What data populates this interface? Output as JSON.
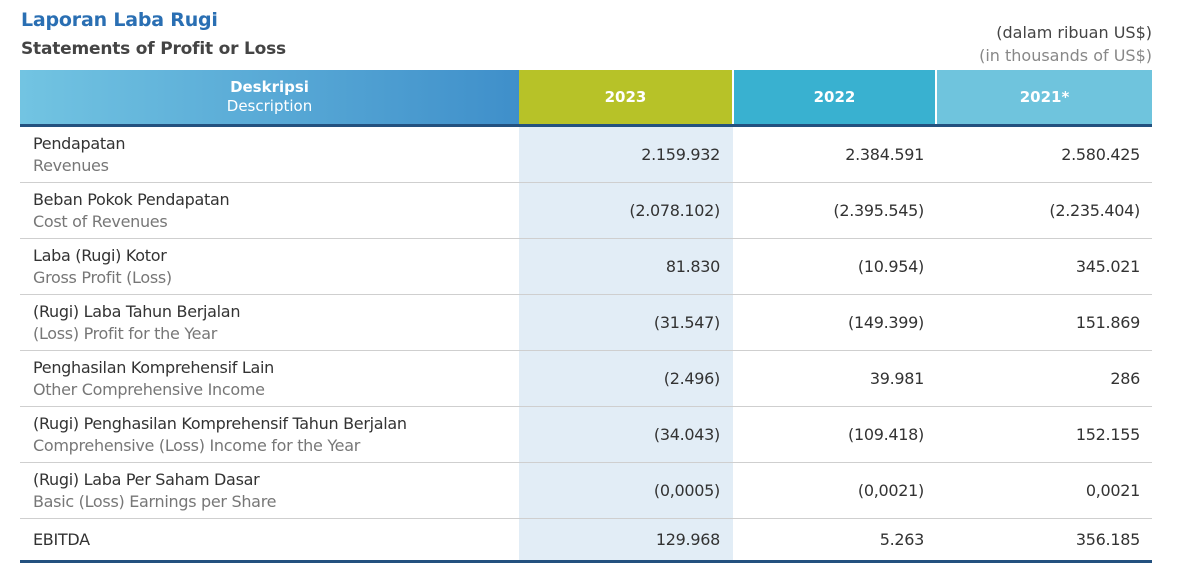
{
  "header": {
    "title_id": "Laporan Laba Rugi",
    "title_en": "Statements of Profit or Loss",
    "unit_id": "(dalam ribuan US$)",
    "unit_en": "(in thousands of US$)"
  },
  "table": {
    "columns": {
      "desc_id": "Deskripsi",
      "desc_en": "Description",
      "y2023": "2023",
      "y2022": "2022",
      "y2021": "2021*"
    },
    "rows": [
      {
        "id": "Pendapatan",
        "en": "Revenues",
        "v2023": "2.159.932",
        "v2022": "2.384.591",
        "v2021": "2.580.425"
      },
      {
        "id": "Beban Pokok Pendapatan",
        "en": "Cost of Revenues",
        "v2023": "(2.078.102)",
        "v2022": "(2.395.545)",
        "v2021": "(2.235.404)"
      },
      {
        "id": "Laba (Rugi) Kotor",
        "en": "Gross Profit (Loss)",
        "v2023": "81.830",
        "v2022": "(10.954)",
        "v2021": "345.021"
      },
      {
        "id": "(Rugi) Laba Tahun Berjalan",
        "en": "(Loss) Profit for the Year",
        "v2023": "(31.547)",
        "v2022": "(149.399)",
        "v2021": "151.869"
      },
      {
        "id": "Penghasilan Komprehensif Lain",
        "en": "Other Comprehensive Income",
        "v2023": "(2.496)",
        "v2022": "39.981",
        "v2021": "286"
      },
      {
        "id": "(Rugi) Penghasilan Komprehensif Tahun Berjalan",
        "en": "Comprehensive (Loss) Income for the Year",
        "v2023": "(34.043)",
        "v2022": "(109.418)",
        "v2021": "152.155"
      },
      {
        "id": "(Rugi) Laba Per Saham Dasar",
        "en": "Basic (Loss) Earnings per Share",
        "v2023": "(0,0005)",
        "v2022": "(0,0021)",
        "v2021": "0,0021"
      },
      {
        "id": "EBITDA",
        "en": "",
        "v2023": "129.968",
        "v2022": "5.263",
        "v2021": "356.185"
      }
    ]
  },
  "colors": {
    "title_blue": "#2a6fb3",
    "header_2023": "#b7c228",
    "header_2022": "#39b1d0",
    "header_2021": "#6fc4dd",
    "highlight_column": "#e2edf6",
    "rule_navy": "#23517f"
  }
}
